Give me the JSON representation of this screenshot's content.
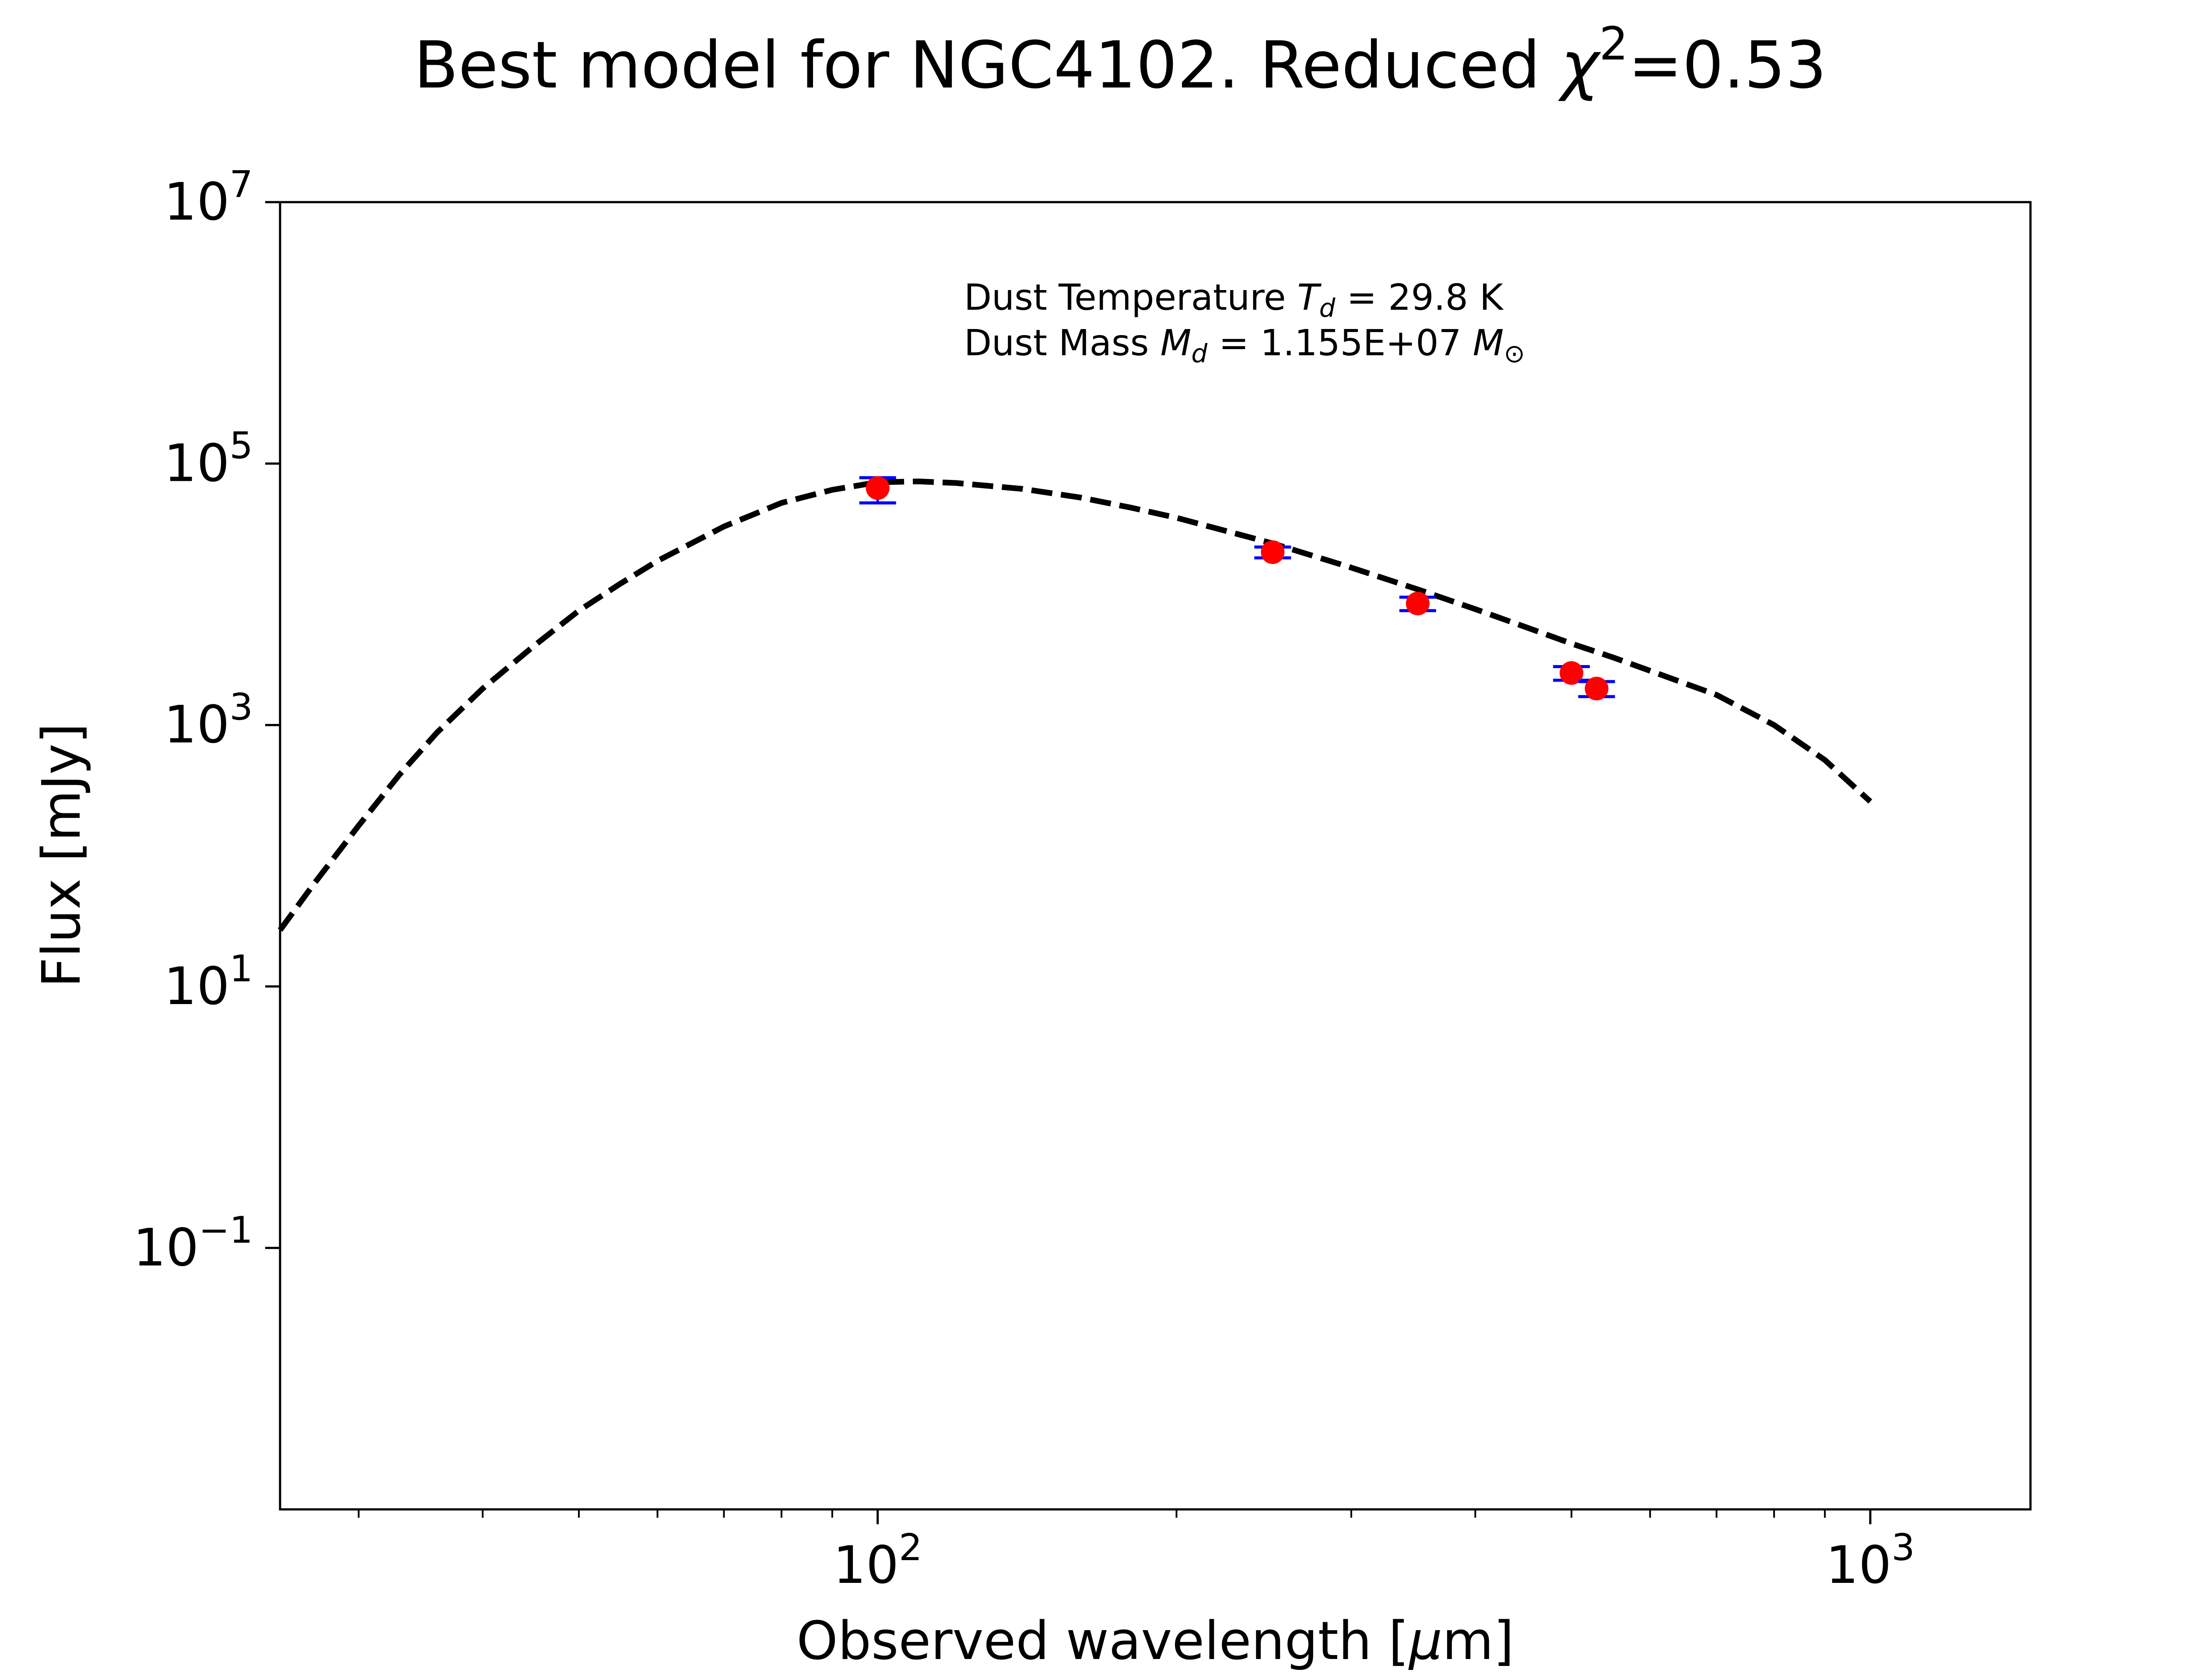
{
  "chart_data": {
    "type": "scatter",
    "title": "Best model for NGC4102. Reduced χ²=0.53",
    "title_parts": {
      "main": "Best model for NGC4102. Reduced ",
      "chi": "χ",
      "exp": "2",
      "value": "=0.53"
    },
    "xlabel": "Observed wavelength [μm]",
    "xlabel_parts": {
      "text": "Observed wavelength [",
      "mu": "μ",
      "unit": "m]"
    },
    "ylabel": "Flux [mJy]",
    "xscale": "log",
    "yscale": "log",
    "xlim": [
      25,
      1450
    ],
    "ylim": [
      0.001,
      10000000
    ],
    "x_ticks": [
      {
        "value": 100,
        "base": "10",
        "exp": "2"
      },
      {
        "value": 1000,
        "base": "10",
        "exp": "3"
      }
    ],
    "y_ticks": [
      {
        "value": 0.1,
        "base": "10",
        "exp": "−1"
      },
      {
        "value": 10,
        "base": "10",
        "exp": "1"
      },
      {
        "value": 1000,
        "base": "10",
        "exp": "3"
      },
      {
        "value": 100000,
        "base": "10",
        "exp": "5"
      },
      {
        "value": 10000000,
        "base": "10",
        "exp": "7"
      }
    ],
    "grid": false,
    "annotations": {
      "temperature": {
        "prefix": "Dust Temperature ",
        "sym": "T",
        "sub": "d",
        "suffix": " = 29.8 K"
      },
      "mass": {
        "prefix": "Dust Mass ",
        "sym": "M",
        "sub": "d",
        "mid": " = 1.155E+07 ",
        "sym2": "M",
        "sub2": "⊙"
      }
    },
    "series": [
      {
        "style": "dashed-line",
        "color": "#000000",
        "x": [
          25,
          27,
          30,
          33,
          36,
          40,
          45,
          50,
          55,
          60,
          70,
          80,
          90,
          100,
          110,
          120,
          140,
          160,
          180,
          200,
          250,
          300,
          350,
          400,
          450,
          500,
          550,
          600,
          700,
          800,
          900,
          1000
        ],
        "y": [
          27,
          60,
          170,
          420,
          880,
          1900,
          4000,
          7500,
          12000,
          18000,
          33000,
          50000,
          63000,
          72000,
          73000,
          71000,
          64000,
          55000,
          46000,
          38500,
          24500,
          16000,
          10900,
          7700,
          5600,
          4200,
          3300,
          2600,
          1700,
          1000,
          540,
          260
        ]
      },
      {
        "style": "points-with-errorbars",
        "color": "#ff0000",
        "errorbar_color": "#0000ff",
        "x": [
          100,
          250,
          350,
          500,
          530
        ],
        "y": [
          65000,
          21000,
          8500,
          2500,
          1900
        ],
        "yerr_low": [
          15000,
          2000,
          1000,
          300,
          250
        ],
        "yerr_high": [
          13000,
          2000,
          1000,
          300,
          250
        ]
      }
    ]
  }
}
